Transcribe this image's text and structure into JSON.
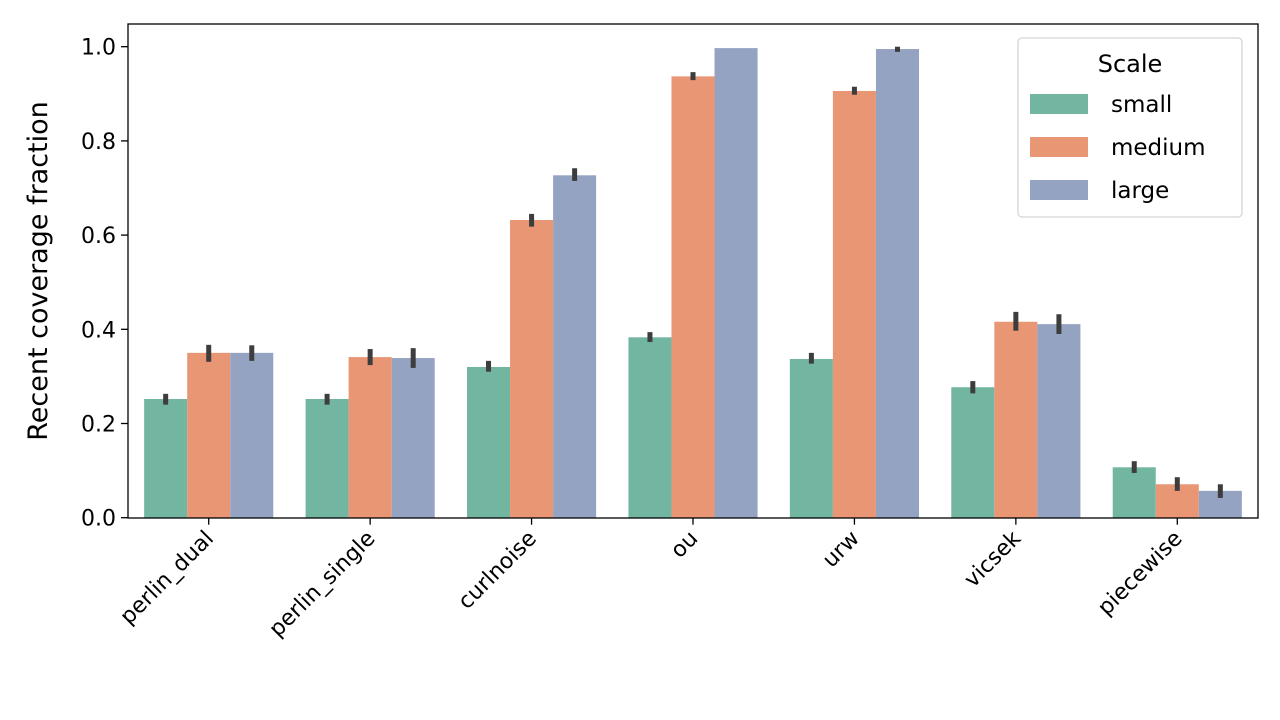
{
  "chart_data": {
    "type": "bar",
    "title": "",
    "xlabel": "",
    "ylabel": "Recent coverage fraction",
    "ylim": [
      0,
      1.05
    ],
    "yticks": [
      "0.0",
      "0.2",
      "0.4",
      "0.6",
      "0.8",
      "1.0"
    ],
    "grid": false,
    "categories": [
      "perlin_dual",
      "perlin_single",
      "curlnoise",
      "ou",
      "urw",
      "vicsek",
      "piecewise"
    ],
    "legend": {
      "title": "Scale",
      "placement": "top-right"
    },
    "series": [
      {
        "name": "small",
        "color": "#72b6a1",
        "values": [
          0.252,
          0.252,
          0.32,
          0.383,
          0.337,
          0.277,
          0.107
        ],
        "ci": [
          [
            0.24,
            0.263
          ],
          [
            0.24,
            0.263
          ],
          [
            0.31,
            0.333
          ],
          [
            0.373,
            0.394
          ],
          [
            0.327,
            0.35
          ],
          [
            0.264,
            0.29
          ],
          [
            0.095,
            0.12
          ]
        ]
      },
      {
        "name": "medium",
        "color": "#e99675",
        "values": [
          0.35,
          0.341,
          0.632,
          0.937,
          0.906,
          0.416,
          0.071
        ],
        "ci": [
          [
            0.331,
            0.367
          ],
          [
            0.324,
            0.358
          ],
          [
            0.618,
            0.645
          ],
          [
            0.929,
            0.946
          ],
          [
            0.898,
            0.915
          ],
          [
            0.397,
            0.437
          ],
          [
            0.057,
            0.086
          ]
        ]
      },
      {
        "name": "large",
        "color": "#95a3c3",
        "values": [
          0.35,
          0.339,
          0.727,
          0.997,
          0.995,
          0.411,
          0.057
        ],
        "ci": [
          [
            0.333,
            0.366
          ],
          [
            0.318,
            0.36
          ],
          [
            0.715,
            0.742
          ],
          [
            0.997,
            0.997
          ],
          [
            0.989,
            1.0
          ],
          [
            0.39,
            0.432
          ],
          [
            0.042,
            0.071
          ]
        ]
      }
    ]
  }
}
